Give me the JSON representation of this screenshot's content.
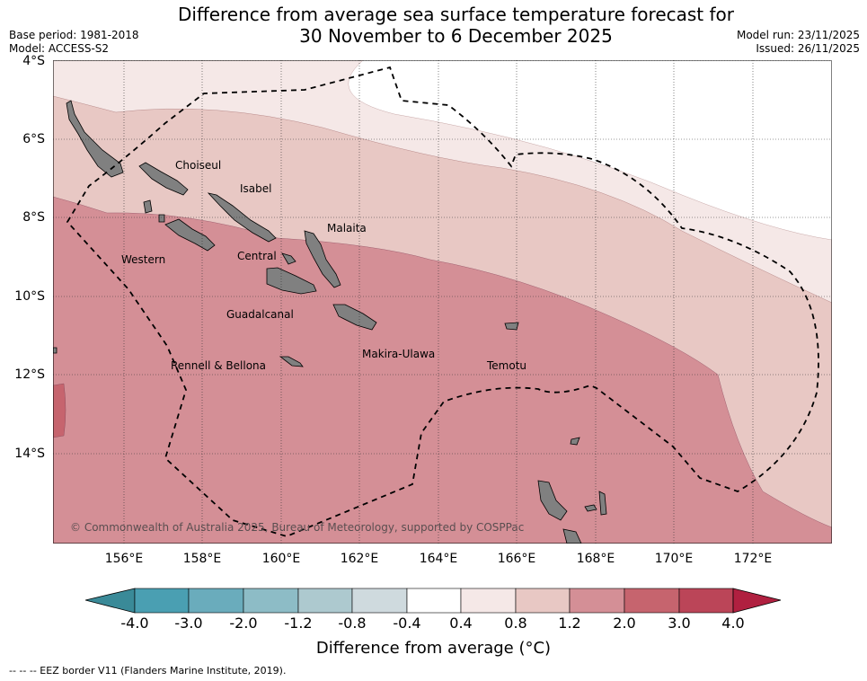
{
  "header": {
    "title_line1": "Difference from average sea surface temperature forecast for",
    "title_line2": "30 November to 6 December 2025",
    "base_period": "Base period: 1981-2018",
    "model": "Model: ACCESS-S2",
    "model_run": "Model run: 23/11/2025",
    "issued": "Issued: 26/11/2025"
  },
  "map": {
    "lat_labels": [
      "4°S",
      "6°S",
      "8°S",
      "10°S",
      "12°S",
      "14°S"
    ],
    "lon_labels": [
      "156°E",
      "158°E",
      "160°E",
      "162°E",
      "164°E",
      "166°E",
      "168°E",
      "170°E",
      "172°E"
    ],
    "places": [
      {
        "name": "Choiseul"
      },
      {
        "name": "Isabel"
      },
      {
        "name": "Malaita"
      },
      {
        "name": "Western"
      },
      {
        "name": "Central"
      },
      {
        "name": "Guadalcanal"
      },
      {
        "name": "Makira-Ulawa"
      },
      {
        "name": "Temotu"
      },
      {
        "name": "Rennell & Bellona"
      }
    ],
    "copyright": "© Commonwealth of Australia 2025, Bureau of Meteorology, supported by COSPPac",
    "land_color": "#808080",
    "zone_colors": [
      "#f5e8e7",
      "#e8c8c4",
      "#d48f96",
      "#c6646e"
    ]
  },
  "colorbar": {
    "ticks": [
      "-4.0",
      "-3.0",
      "-2.0",
      "-1.2",
      "-0.8",
      "-0.4",
      "0.4",
      "0.8",
      "1.2",
      "2.0",
      "3.0",
      "4.0"
    ],
    "colors": [
      "#4a9fb2",
      "#6aacbc",
      "#8dbcc6",
      "#adc9cf",
      "#cfdade",
      "#ffffff",
      "#f5e8e7",
      "#e8c8c4",
      "#d48f96",
      "#c6646e",
      "#bb4558"
    ],
    "under_color": "#3a8a98",
    "over_color": "#b02040",
    "label": "Difference from average (°C)"
  },
  "footer": {
    "eez_note": "--  --  -- EEZ border V11 (Flanders Marine Institute, 2019)."
  }
}
